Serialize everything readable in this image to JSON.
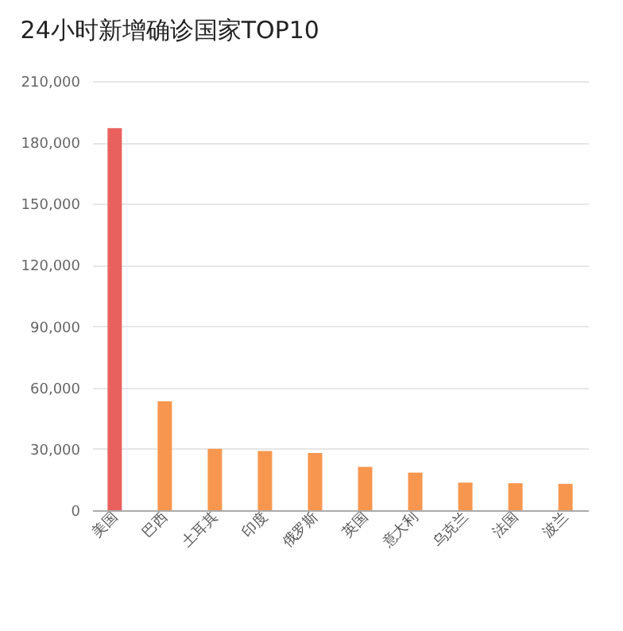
{
  "chart_data": {
    "type": "bar",
    "title": "24小时新增确诊国家TOP10",
    "categories": [
      "美国",
      "巴西",
      "土耳其",
      "印度",
      "俄罗斯",
      "英国",
      "意大利",
      "乌克兰",
      "法国",
      "波兰"
    ],
    "values": [
      187000,
      53300,
      30000,
      29000,
      28000,
      21200,
      18400,
      13500,
      13200,
      12900
    ],
    "colors": [
      "#e8615e",
      "#f7974f",
      "#f7974f",
      "#f7974f",
      "#f7974f",
      "#f7974f",
      "#f7974f",
      "#f7974f",
      "#f7974f",
      "#f7974f"
    ],
    "ylim": [
      0,
      210000
    ],
    "yticks": [
      0,
      {
        "value": 30000,
        "label": "30,000"
      },
      {
        "value": 60000,
        "label": "60,000"
      },
      {
        "value": 90000,
        "label": "90,000"
      },
      {
        "value": 120000,
        "label": "120,000"
      },
      {
        "value": 150000,
        "label": "150,000"
      },
      {
        "value": 180000,
        "label": "180,000"
      },
      {
        "value": 210000,
        "label": "210,000"
      }
    ],
    "grid": "y"
  }
}
